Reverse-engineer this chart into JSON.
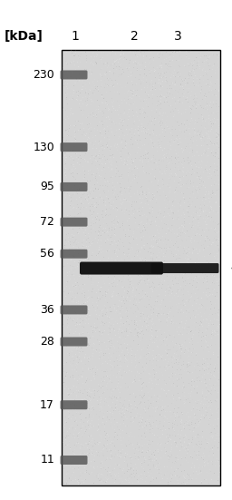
{
  "kda_label": "[kDa]",
  "lane_labels": [
    "1",
    "2",
    "3"
  ],
  "marker_kdas": [
    230,
    130,
    95,
    72,
    56,
    36,
    28,
    17,
    11
  ],
  "fig_width": 2.56,
  "fig_height": 5.51,
  "dpi": 100,
  "bg_color": "#ffffff",
  "blot_bg_color": "#d8d8d8",
  "marker_band_color": "#555555",
  "band_color": "#111111",
  "arrow_color": "#111111",
  "text_color": "#000000",
  "band_kda": 50,
  "kda_label_fontsize": 10,
  "lane_label_fontsize": 10,
  "kda_fontsize": 9
}
